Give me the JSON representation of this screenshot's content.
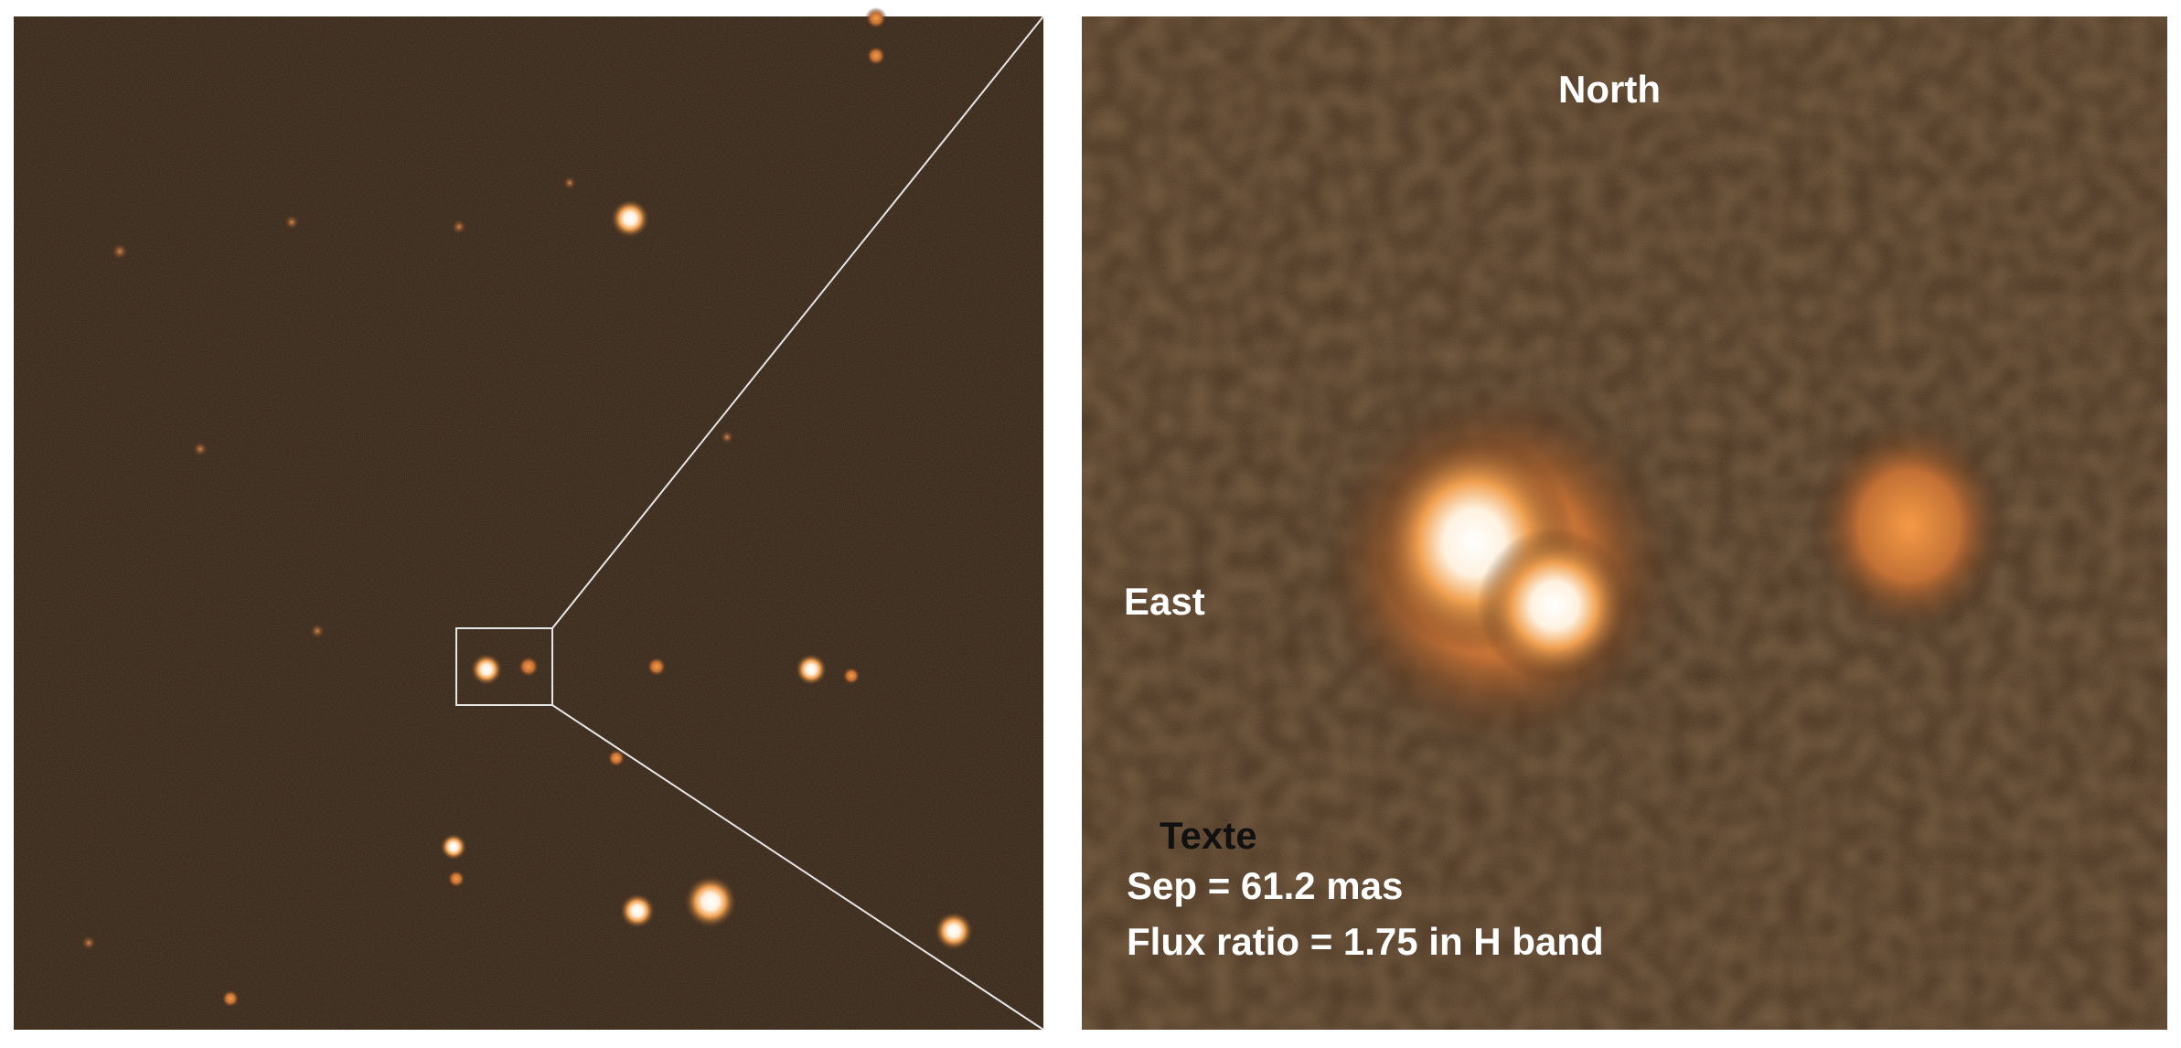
{
  "right_panel": {
    "north_label": "North",
    "east_label": "East",
    "placeholder_label": "Texte",
    "separation": "Sep = 61.2 mas",
    "flux_ratio": "Flux ratio = 1.75 in H band"
  }
}
